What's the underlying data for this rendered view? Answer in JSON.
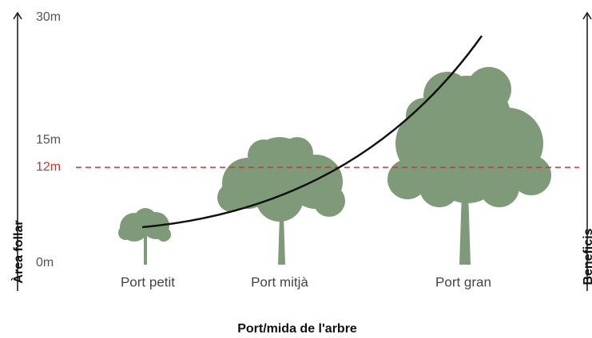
{
  "axes": {
    "left_label": "Àrea follar",
    "right_label": "Beneficis",
    "bottom_label": "Port/mida de l'arbre"
  },
  "height_labels": [
    "30m",
    "15m",
    "12m",
    "0m"
  ],
  "trees": [
    {
      "label": "Port petit"
    },
    {
      "label": "Port mitjà"
    },
    {
      "label": "Port gran"
    }
  ]
}
